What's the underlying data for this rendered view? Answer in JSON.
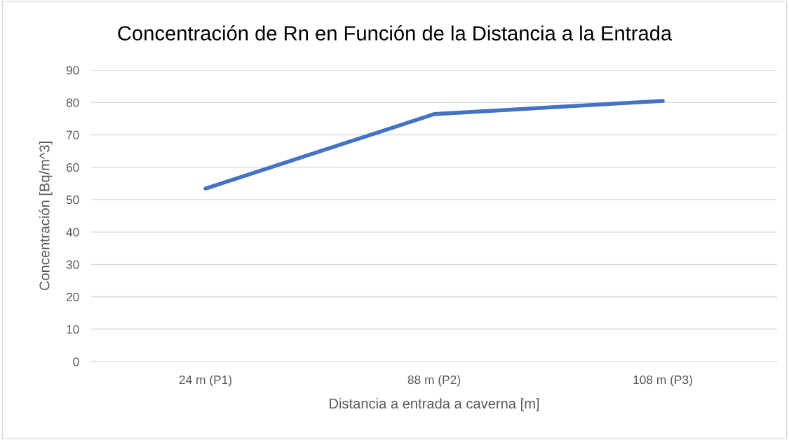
{
  "chart_data": {
    "type": "line",
    "title": "Concentración de Rn en Función de la Distancia a la Entrada",
    "xlabel": "Distancia a entrada a caverna [m]",
    "ylabel": "Concentración [Bq/m^3]",
    "categories": [
      "24 m (P1)",
      "88 m (P2)",
      "108 m (P3)"
    ],
    "series": [
      {
        "color": "#4472c4",
        "values": [
          53.4,
          76.4,
          80.5
        ]
      }
    ],
    "ylim": [
      0,
      90
    ],
    "yticks": [
      0,
      10,
      20,
      30,
      40,
      50,
      60,
      70,
      80,
      90
    ],
    "grid": "y",
    "marker": "none",
    "line_style": "solid"
  }
}
